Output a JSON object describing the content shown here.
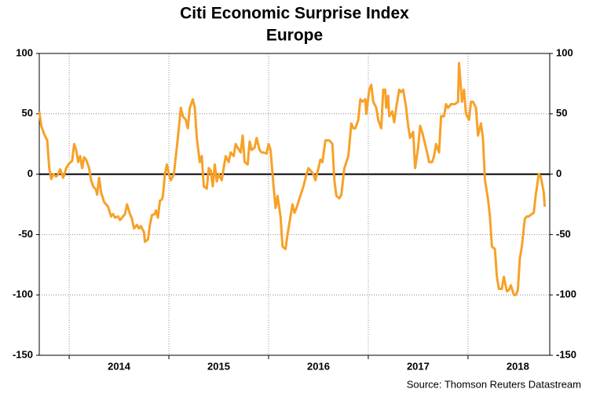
{
  "chart_data": {
    "type": "line",
    "title": "Citi Economic Surprise Index",
    "subtitle": "Europe",
    "source": "Source: Thomson Reuters Datastream",
    "color": "#f7a128",
    "grid": true,
    "xlim": [
      2013.7,
      2018.82
    ],
    "xticks": [
      2014,
      2015,
      2016,
      2017,
      2018
    ],
    "ylim": [
      -150,
      100
    ],
    "yticks": [
      -150,
      -100,
      -50,
      0,
      50,
      100
    ],
    "x": [
      2013.7,
      2013.72,
      2013.75,
      2013.78,
      2013.8,
      2013.82,
      2013.84,
      2013.87,
      2013.89,
      2013.91,
      2013.94,
      2013.97,
      2014.0,
      2014.03,
      2014.05,
      2014.07,
      2014.09,
      2014.11,
      2014.13,
      2014.15,
      2014.17,
      2014.2,
      2014.22,
      2014.24,
      2014.27,
      2014.28,
      2014.3,
      2014.32,
      2014.35,
      2014.37,
      2014.39,
      2014.42,
      2014.44,
      2014.46,
      2014.49,
      2014.51,
      2014.54,
      2014.56,
      2014.58,
      2014.61,
      2014.63,
      2014.65,
      2014.68,
      2014.7,
      2014.72,
      2014.75,
      2014.76,
      2014.79,
      2014.81,
      2014.83,
      2014.86,
      2014.87,
      2014.89,
      2014.91,
      2014.93,
      2014.94,
      2014.96,
      2014.98,
      2015.0,
      2015.02,
      2015.05,
      2015.07,
      2015.09,
      2015.12,
      2015.14,
      2015.17,
      2015.19,
      2015.21,
      2015.24,
      2015.26,
      2015.28,
      2015.31,
      2015.33,
      2015.35,
      2015.38,
      2015.4,
      2015.42,
      2015.44,
      2015.46,
      2015.48,
      2015.5,
      2015.53,
      2015.55,
      2015.57,
      2015.6,
      2015.62,
      2015.65,
      2015.67,
      2015.69,
      2015.72,
      2015.74,
      2015.76,
      2015.79,
      2015.81,
      2015.83,
      2015.86,
      2015.88,
      2015.91,
      2015.93,
      2015.95,
      2015.98,
      2016.0,
      2016.02,
      2016.05,
      2016.07,
      2016.09,
      2016.12,
      2016.14,
      2016.17,
      2016.19,
      2016.21,
      2016.24,
      2016.26,
      2016.28,
      2016.31,
      2016.33,
      2016.35,
      2016.38,
      2016.4,
      2016.42,
      2016.45,
      2016.47,
      2016.5,
      2016.52,
      2016.54,
      2016.57,
      2016.59,
      2016.61,
      2016.64,
      2016.66,
      2016.68,
      2016.71,
      2016.73,
      2016.76,
      2016.78,
      2016.8,
      2016.83,
      2016.85,
      2016.87,
      2016.9,
      2016.92,
      2016.94,
      2016.97,
      2016.98,
      2017.01,
      2017.03,
      2017.05,
      2017.08,
      2017.1,
      2017.13,
      2017.15,
      2017.17,
      2017.18,
      2017.2,
      2017.21,
      2017.24,
      2017.26,
      2017.28,
      2017.31,
      2017.33,
      2017.35,
      2017.38,
      2017.4,
      2017.42,
      2017.45,
      2017.47,
      2017.5,
      2017.52,
      2017.54,
      2017.57,
      2017.59,
      2017.61,
      2017.64,
      2017.66,
      2017.68,
      2017.71,
      2017.73,
      2017.76,
      2017.78,
      2017.8,
      2017.83,
      2017.85,
      2017.87,
      2017.9,
      2017.91,
      2017.94,
      2017.96,
      2017.98,
      2018.01,
      2018.03,
      2018.05,
      2018.08,
      2018.1,
      2018.13,
      2018.15,
      2018.17,
      2018.2,
      2018.22,
      2018.24,
      2018.27,
      2018.29,
      2018.31,
      2018.34,
      2018.36,
      2018.39,
      2018.41,
      2018.43,
      2018.46,
      2018.48,
      2018.5,
      2018.52,
      2018.54,
      2018.57,
      2018.59,
      2018.61,
      2018.64,
      2018.66,
      2018.68,
      2018.71,
      2018.73,
      2018.76,
      2018.77
    ],
    "values": [
      52,
      40,
      33,
      28,
      5,
      -4,
      0,
      -2,
      0,
      4,
      -3,
      5,
      9,
      11,
      25,
      20,
      10,
      15,
      5,
      14,
      12,
      5,
      -5,
      -10,
      -13,
      -17,
      -3,
      -15,
      -23,
      -25,
      -27,
      -35,
      -33,
      -36,
      -35,
      -38,
      -35,
      -33,
      -25,
      -33,
      -37,
      -45,
      -42,
      -45,
      -43,
      -48,
      -56,
      -54,
      -42,
      -34,
      -33,
      -30,
      -36,
      -22,
      -21,
      -18,
      0,
      8,
      0,
      -5,
      0,
      15,
      30,
      55,
      48,
      45,
      38,
      55,
      62,
      55,
      30,
      10,
      15,
      -10,
      -12,
      5,
      3,
      -10,
      8,
      -6,
      0,
      -5,
      5,
      15,
      10,
      18,
      15,
      25,
      22,
      18,
      32,
      10,
      8,
      27,
      20,
      22,
      30,
      20,
      18,
      18,
      17,
      25,
      20,
      -10,
      -28,
      -18,
      -35,
      -60,
      -62,
      -50,
      -40,
      -25,
      -32,
      -28,
      -20,
      -15,
      -10,
      0,
      5,
      3,
      0,
      -5,
      5,
      12,
      10,
      28,
      28,
      28,
      25,
      -5,
      -18,
      -20,
      -17,
      5,
      10,
      15,
      42,
      38,
      38,
      45,
      62,
      60,
      62,
      50,
      70,
      74,
      60,
      55,
      45,
      38,
      70,
      70,
      55,
      65,
      48,
      52,
      43,
      55,
      70,
      68,
      70,
      55,
      40,
      30,
      35,
      5,
      22,
      40,
      35,
      25,
      18,
      10,
      10,
      15,
      25,
      18,
      48,
      48,
      58,
      55,
      58,
      58,
      58,
      60,
      92,
      60,
      70,
      50,
      45,
      60,
      60,
      55,
      32,
      42,
      30,
      -5,
      -20,
      -35,
      -60,
      -62,
      -85,
      -95,
      -95,
      -85,
      -97,
      -96,
      -92,
      -100,
      -100,
      -96,
      -70,
      -60,
      -37,
      -35,
      -35,
      -33,
      -32,
      -17,
      0,
      -2,
      -15,
      -27
    ]
  }
}
